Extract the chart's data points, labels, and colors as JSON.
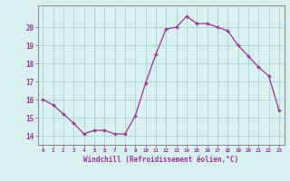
{
  "x": [
    0,
    1,
    2,
    3,
    4,
    5,
    6,
    7,
    8,
    9,
    10,
    11,
    12,
    13,
    14,
    15,
    16,
    17,
    18,
    19,
    20,
    21,
    22,
    23
  ],
  "y": [
    16.0,
    15.7,
    15.2,
    14.7,
    14.1,
    14.3,
    14.3,
    14.1,
    14.1,
    15.1,
    16.9,
    18.5,
    19.9,
    20.0,
    20.6,
    20.2,
    20.2,
    20.0,
    19.8,
    19.0,
    18.4,
    17.8,
    17.3,
    15.4
  ],
  "xlim": [
    -0.5,
    23.5
  ],
  "ylim": [
    13.5,
    21.2
  ],
  "yticks": [
    14,
    15,
    16,
    17,
    18,
    19,
    20
  ],
  "xticks": [
    0,
    1,
    2,
    3,
    4,
    5,
    6,
    7,
    8,
    9,
    10,
    11,
    12,
    13,
    14,
    15,
    16,
    17,
    18,
    19,
    20,
    21,
    22,
    23
  ],
  "xlabel": "Windchill (Refroidissement éolien,°C)",
  "line_color": "#993399",
  "marker": "+",
  "bg_color": "#d8f0f0",
  "grid_color": "#b0d8d8",
  "axis_color": "#666666",
  "tick_color": "#993399",
  "label_color": "#993399"
}
